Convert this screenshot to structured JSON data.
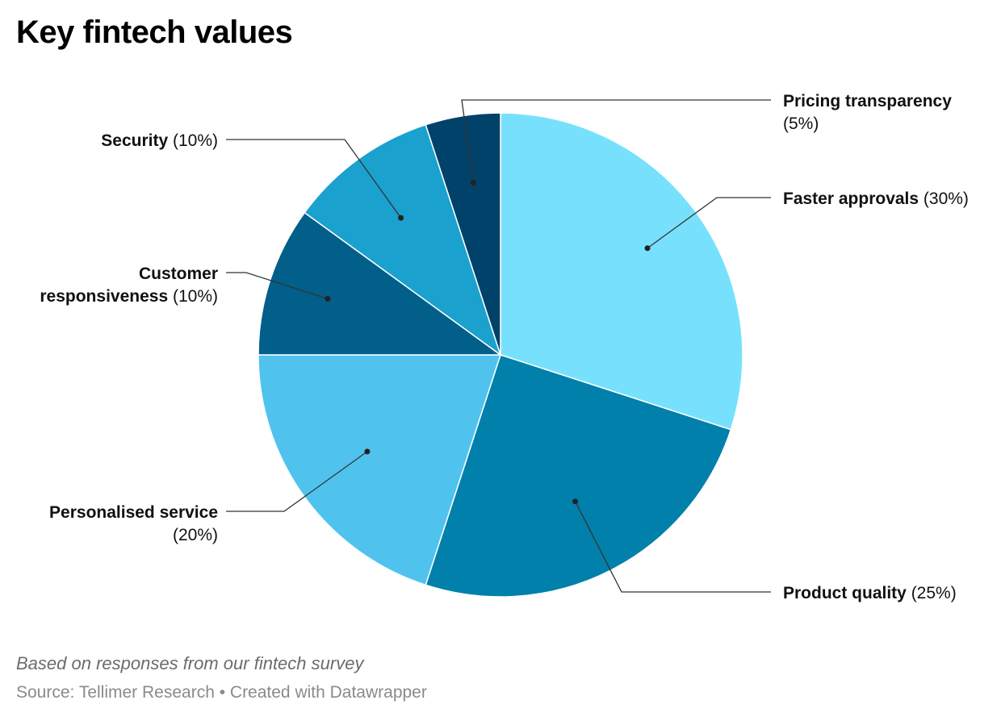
{
  "title": "Key fintech values",
  "notes": "Based on responses from our fintech survey",
  "source": "Source: Tellimer Research • Created with Datawrapper",
  "chart_data": {
    "type": "pie",
    "title": "Key fintech values",
    "unit": "%",
    "slices": [
      {
        "name": "Faster approvals",
        "value": 30,
        "pct": "(30%)",
        "color": "#77e1fd"
      },
      {
        "name": "Product quality",
        "value": 25,
        "pct": "(25%)",
        "color": "#0180ab"
      },
      {
        "name": "Personalised service",
        "value": 20,
        "pct": "(20%)",
        "color": "#4fc3ee"
      },
      {
        "name": "Customer responsiveness",
        "value": 10,
        "pct": "(10%)",
        "color": "#015f8a"
      },
      {
        "name": "Security",
        "value": 10,
        "pct": "(10%)",
        "color": "#1aa1ce"
      },
      {
        "name": "Pricing transparency",
        "value": 5,
        "pct": "(5%)",
        "color": "#01426a"
      }
    ]
  }
}
